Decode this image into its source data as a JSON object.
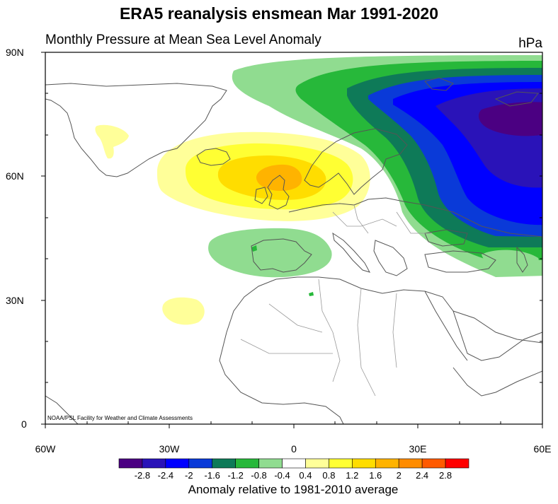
{
  "title": "ERA5 reanalysis ensmean Mar 1991-2020",
  "subtitle": "Monthly Pressure at Mean Sea Level Anomaly",
  "units": "hPa",
  "credit": "NOAA/PSL Facility for Weather and Climate Assessments",
  "y_axis_labels": [
    "90N",
    "60N",
    "30N",
    "0"
  ],
  "x_axis_labels": [
    "60W",
    "30W",
    "0",
    "30E",
    "60E"
  ],
  "colorbar": {
    "caption": "Anomaly relative to 1981-2010 average",
    "tick_labels": [
      "-2.8",
      "-2.4",
      "-2",
      "-1.6",
      "-1.2",
      "-0.8",
      "-0.4",
      "0.4",
      "0.8",
      "1.2",
      "1.6",
      "2",
      "2.4",
      "2.8"
    ],
    "colors": [
      "#4b0082",
      "#2a13b8",
      "#0000ff",
      "#0a3ad8",
      "#0e7a58",
      "#27b83a",
      "#90dc90",
      "#ffffff",
      "#ffff99",
      "#ffff33",
      "#ffdd00",
      "#ffb300",
      "#ff8c00",
      "#ff5a00",
      "#ff0000"
    ]
  },
  "chart_data": {
    "type": "heatmap",
    "title": "ERA5 reanalysis ensmean Mar 1991-2020",
    "subtitle": "Monthly Pressure at Mean Sea Level Anomaly",
    "units": "hPa",
    "lon_range": [
      -60,
      60
    ],
    "lat_range": [
      0,
      90
    ],
    "contour_levels": [
      -2.8,
      -2.4,
      -2,
      -1.6,
      -1.2,
      -0.8,
      -0.4,
      0.4,
      0.8,
      1.2,
      1.6,
      2,
      2.4,
      2.8
    ],
    "features": [
      {
        "description": "positive anomaly maximum over British Isles / North Sea",
        "max_level": 2
      },
      {
        "description": "negative anomaly minimum over northern Russia / Barents Sea",
        "min_level": -2.8
      }
    ]
  }
}
